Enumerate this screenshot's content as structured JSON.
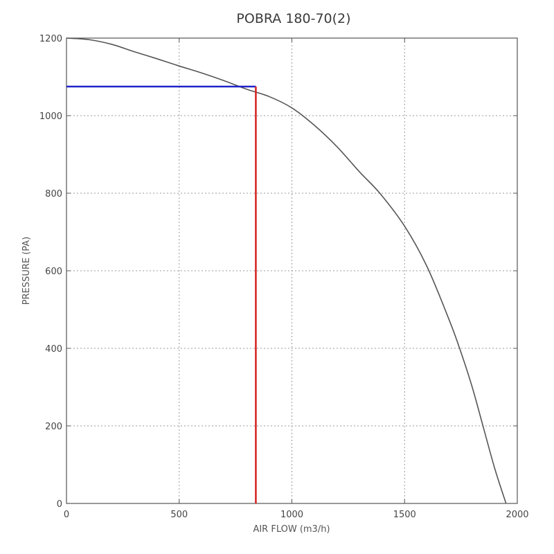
{
  "chart_data": {
    "type": "line",
    "title": "POBRA 180-70(2)",
    "xlabel": "AIR FLOW (m3/h)",
    "ylabel": "PRESSURE (PA)",
    "xlim": [
      0,
      2000
    ],
    "ylim": [
      0,
      1200
    ],
    "xticks": [
      0,
      500,
      1000,
      1500,
      2000
    ],
    "yticks": [
      0,
      200,
      400,
      600,
      800,
      1000,
      1200
    ],
    "x_tick_labels": [
      "0",
      "500",
      "1000",
      "1500",
      "2000"
    ],
    "y_tick_labels": [
      "0",
      "200",
      "400",
      "600",
      "800",
      "1000",
      "1200"
    ],
    "grid": true,
    "series": [
      {
        "color": "#555555",
        "x": [
          0,
          100,
          200,
          300,
          400,
          500,
          600,
          700,
          800,
          840,
          900,
          1000,
          1100,
          1200,
          1300,
          1390,
          1500,
          1600,
          1700,
          1750,
          1800,
          1850,
          1900,
          1950
        ],
        "y": [
          1200,
          1196,
          1184,
          1165,
          1147,
          1128,
          1110,
          1090,
          1068,
          1075,
          1049,
          1020,
          975,
          920,
          855,
          800,
          715,
          610,
          470,
          390,
          300,
          195,
          90,
          0
        ]
      }
    ],
    "annotations": [
      {
        "type": "hline",
        "y": 1075,
        "x_from": 0,
        "x_to": 840,
        "color": "#1f22c8"
      },
      {
        "type": "vline",
        "x": 840,
        "y_from": 0,
        "y_to": 1075,
        "color": "#d42020"
      }
    ]
  }
}
